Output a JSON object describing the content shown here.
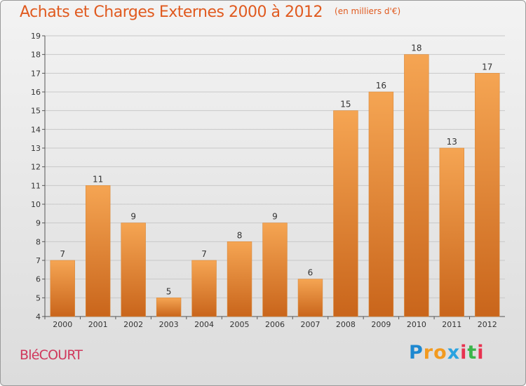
{
  "title": "Achats et Charges Externes 2000 à 2012",
  "subtitle": "(en milliers d'€)",
  "commune": "BléCOURT",
  "logo": {
    "letters": [
      "P",
      "r",
      "o",
      "x",
      "i",
      "t",
      "i"
    ],
    "colors": [
      "#1e88d0",
      "#f29a1f",
      "#f29a1f",
      "#2aa3e0",
      "#e8324f",
      "#3ab54a",
      "#e8324f"
    ]
  },
  "colors": {
    "title": "#e05a1f",
    "commune": "#d0385c",
    "bar_light": "#f5a553",
    "bar_dark": "#c9651b",
    "grid": "#c8c8c8"
  },
  "chart_data": {
    "type": "bar",
    "categories": [
      "2000",
      "2001",
      "2002",
      "2003",
      "2004",
      "2005",
      "2006",
      "2007",
      "2008",
      "2009",
      "2010",
      "2011",
      "2012"
    ],
    "values": [
      7,
      11,
      9,
      5,
      7,
      8,
      9,
      6,
      15,
      16,
      18,
      13,
      17
    ],
    "ylim": [
      4,
      19
    ],
    "yticks": [
      4,
      5,
      6,
      7,
      8,
      9,
      10,
      11,
      12,
      13,
      14,
      15,
      16,
      17,
      18,
      19
    ],
    "grid": true,
    "data_labels": true
  }
}
